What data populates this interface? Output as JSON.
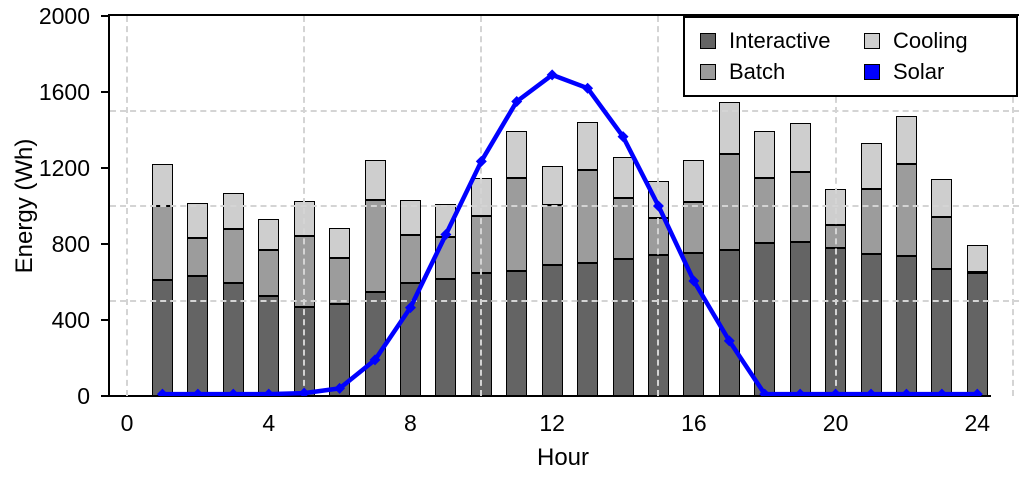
{
  "chart_data": {
    "type": "bar",
    "subtype": "stacked-bar-with-line-overlay",
    "title": "",
    "xlabel": "Hour",
    "ylabel": "Energy (Wh)",
    "x_hours": [
      1,
      2,
      3,
      4,
      5,
      6,
      7,
      8,
      9,
      10,
      11,
      12,
      13,
      14,
      15,
      16,
      17,
      18,
      19,
      20,
      21,
      22,
      23,
      24
    ],
    "series": [
      {
        "name": "Interactive",
        "type": "bar",
        "color": "#646464",
        "values": [
          610,
          630,
          595,
          525,
          470,
          485,
          550,
          595,
          615,
          650,
          660,
          690,
          700,
          720,
          740,
          755,
          770,
          805,
          810,
          780,
          750,
          735,
          670,
          645
        ]
      },
      {
        "name": "Batch",
        "type": "bar",
        "color": "#9c9c9c",
        "values": [
          390,
          200,
          285,
          245,
          370,
          240,
          480,
          255,
          220,
          295,
          485,
          315,
          490,
          320,
          195,
          265,
          505,
          345,
          370,
          120,
          340,
          485,
          270,
          10
        ]
      },
      {
        "name": "Cooling",
        "type": "bar",
        "color": "#cecece",
        "values": [
          220,
          185,
          190,
          160,
          185,
          160,
          210,
          180,
          175,
          205,
          250,
          205,
          250,
          220,
          195,
          220,
          275,
          245,
          255,
          190,
          240,
          255,
          200,
          140
        ]
      },
      {
        "name": "Solar",
        "type": "line",
        "color": "#0000ff",
        "values": [
          10,
          10,
          10,
          10,
          15,
          40,
          190,
          465,
          850,
          1235,
          1550,
          1690,
          1620,
          1365,
          1000,
          605,
          290,
          10,
          10,
          10,
          10,
          10,
          10,
          10
        ]
      }
    ],
    "ylim": [
      0,
      2000
    ],
    "xlim": [
      0,
      25
    ],
    "yticks": [
      0,
      400,
      800,
      1200,
      1600,
      2000
    ],
    "xticks": [
      0,
      4,
      8,
      12,
      16,
      20,
      24
    ],
    "grid": {
      "style": "dashed",
      "color": "#d4d4d4",
      "h_values": [
        500,
        1000,
        1500
      ],
      "v_hours": [
        0,
        5,
        10,
        15,
        20,
        25
      ],
      "drawn_over_bars": true
    },
    "legend": {
      "position": "top-right",
      "columns": [
        [
          "Interactive",
          "Batch"
        ],
        [
          "Cooling",
          "Solar"
        ]
      ]
    },
    "axis_color": "#000000",
    "background": "#ffffff"
  }
}
